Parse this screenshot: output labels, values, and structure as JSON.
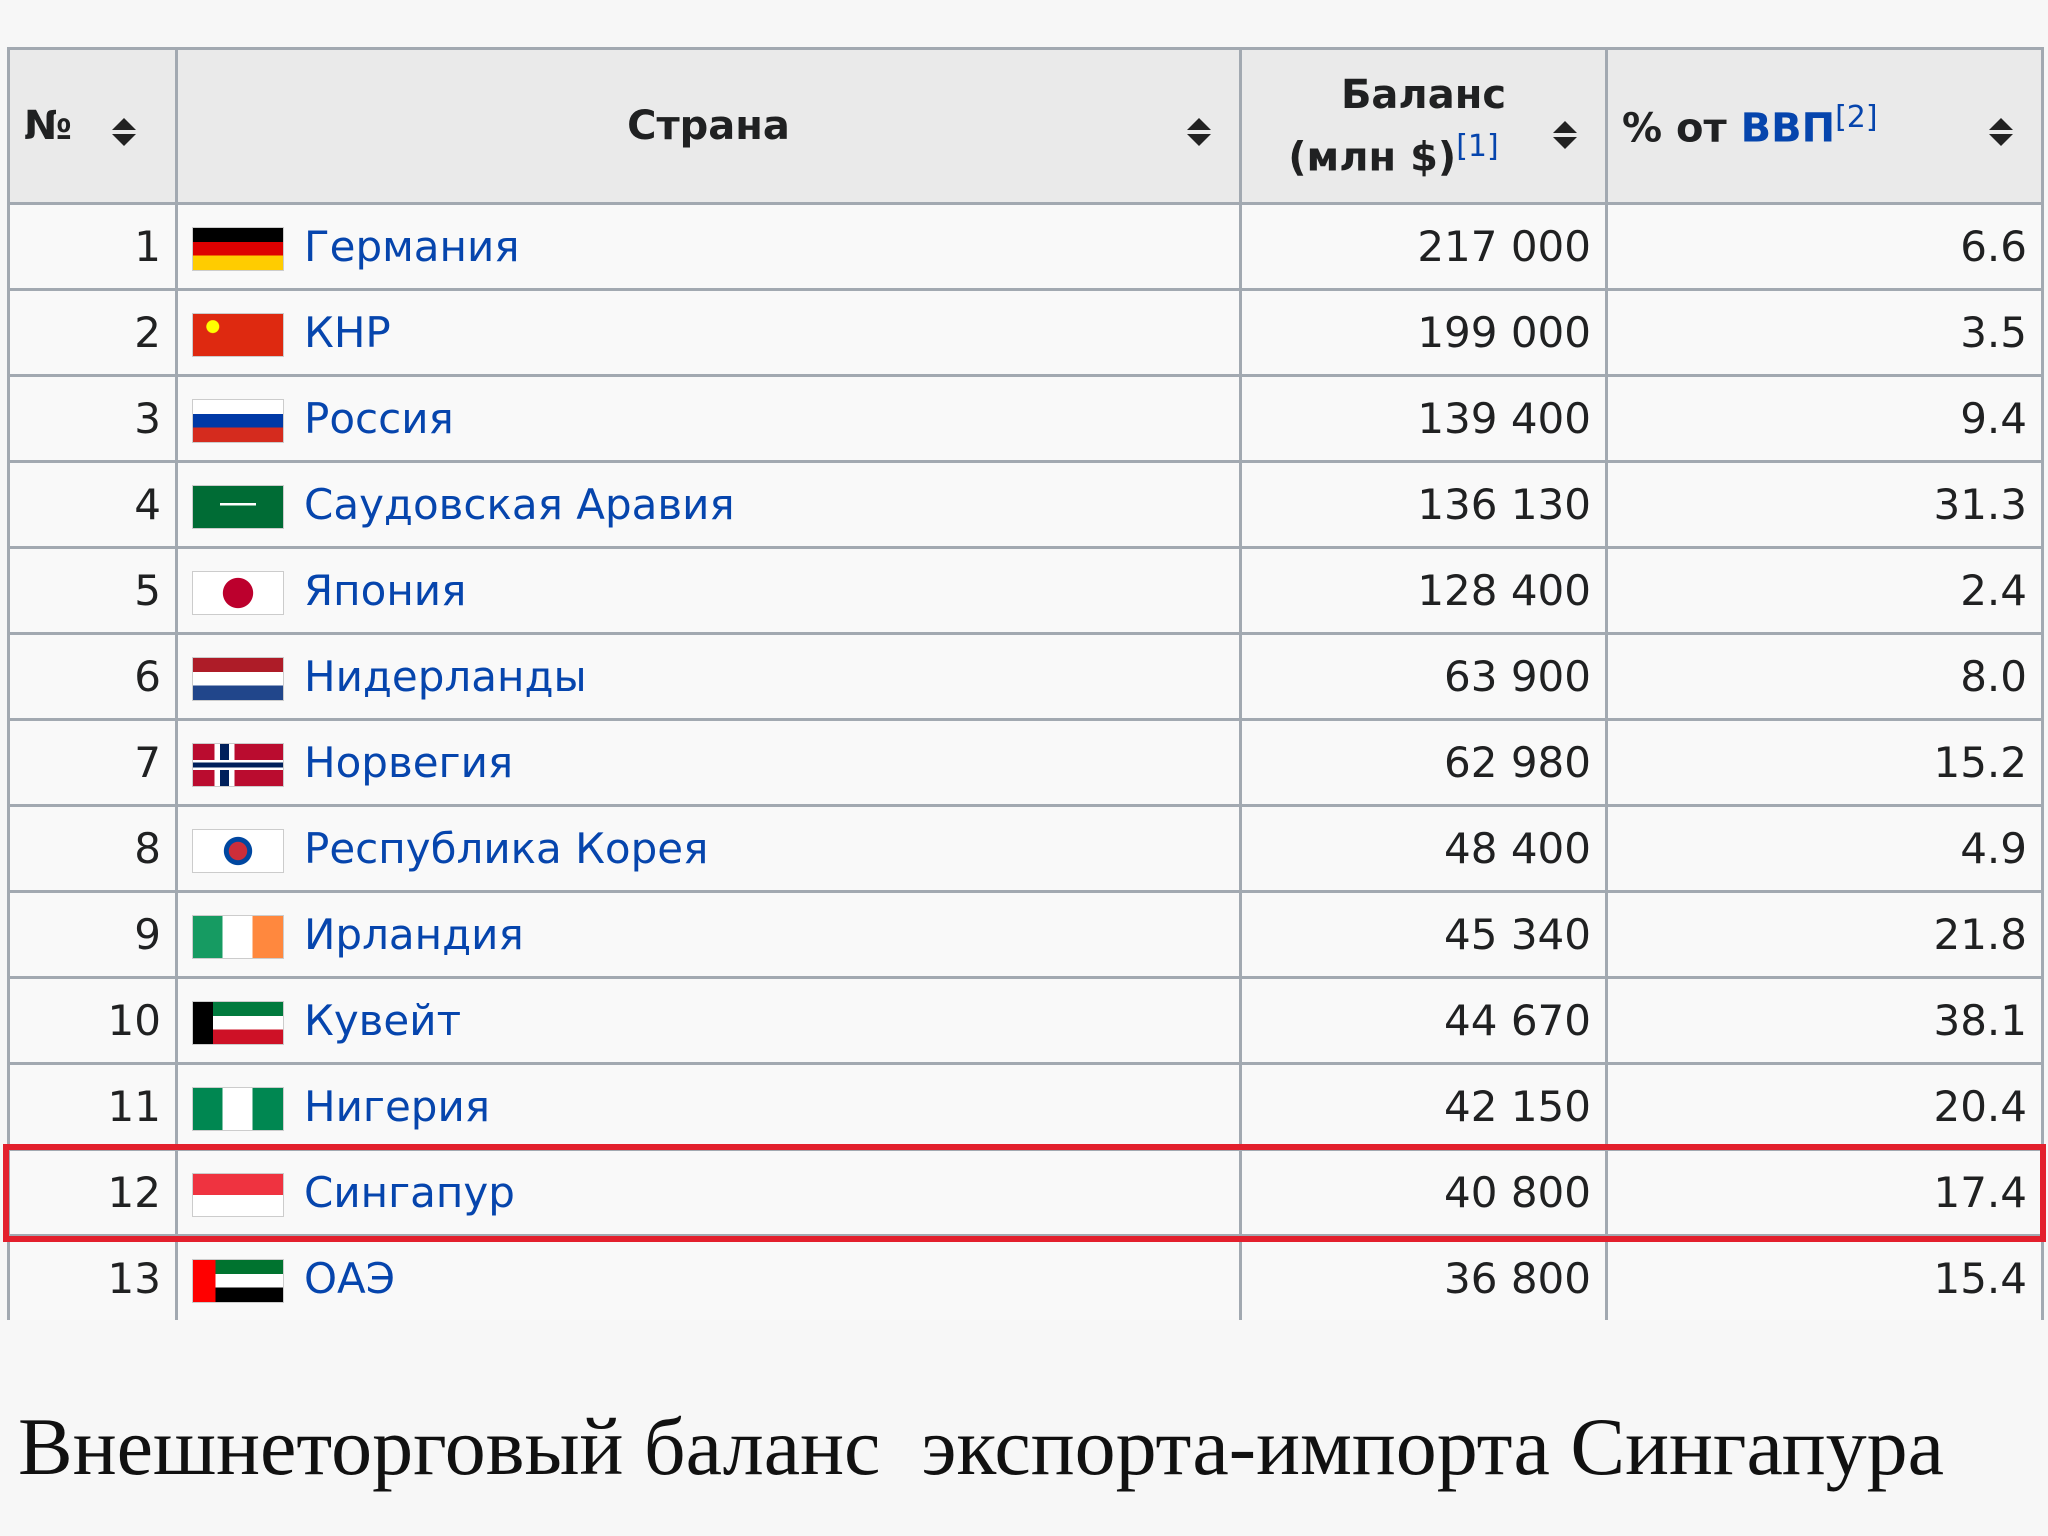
{
  "table": {
    "header": {
      "number": "№",
      "country": "Страна",
      "balance": "Баланс",
      "balance_unit": "(млн $)",
      "balance_ref": "[1]",
      "gdp_prefix": "% от",
      "gdp_link": "ВВП",
      "gdp_ref": "[2]"
    },
    "rows": [
      [
        "1",
        "Германия",
        "217 000",
        "6.6"
      ],
      [
        "2",
        "КНР",
        "199 000",
        "3.5"
      ],
      [
        "3",
        "Россия",
        "139 400",
        "9.4"
      ],
      [
        "4",
        "Саудовская Аравия",
        "136 130",
        "31.3"
      ],
      [
        "5",
        "Япония",
        "128 400",
        "2.4"
      ],
      [
        "6",
        "Нидерланды",
        "63 900",
        "8.0"
      ],
      [
        "7",
        "Норвегия",
        "62 980",
        "15.2"
      ],
      [
        "8",
        "Республика Корея",
        "48 400",
        "4.9"
      ],
      [
        "9",
        "Ирландия",
        "45 340",
        "21.8"
      ],
      [
        "10",
        "Кувейт",
        "44 670",
        "38.1"
      ],
      [
        "11",
        "Нигерия",
        "42 150",
        "20.4"
      ],
      [
        "12",
        "Сингапур",
        "40 800",
        "17.4"
      ],
      [
        "13",
        "ОАЭ",
        "36 800",
        "15.4"
      ]
    ]
  },
  "caption": "Внешнеторговый баланс  экспорта-импорта Сингапура"
}
